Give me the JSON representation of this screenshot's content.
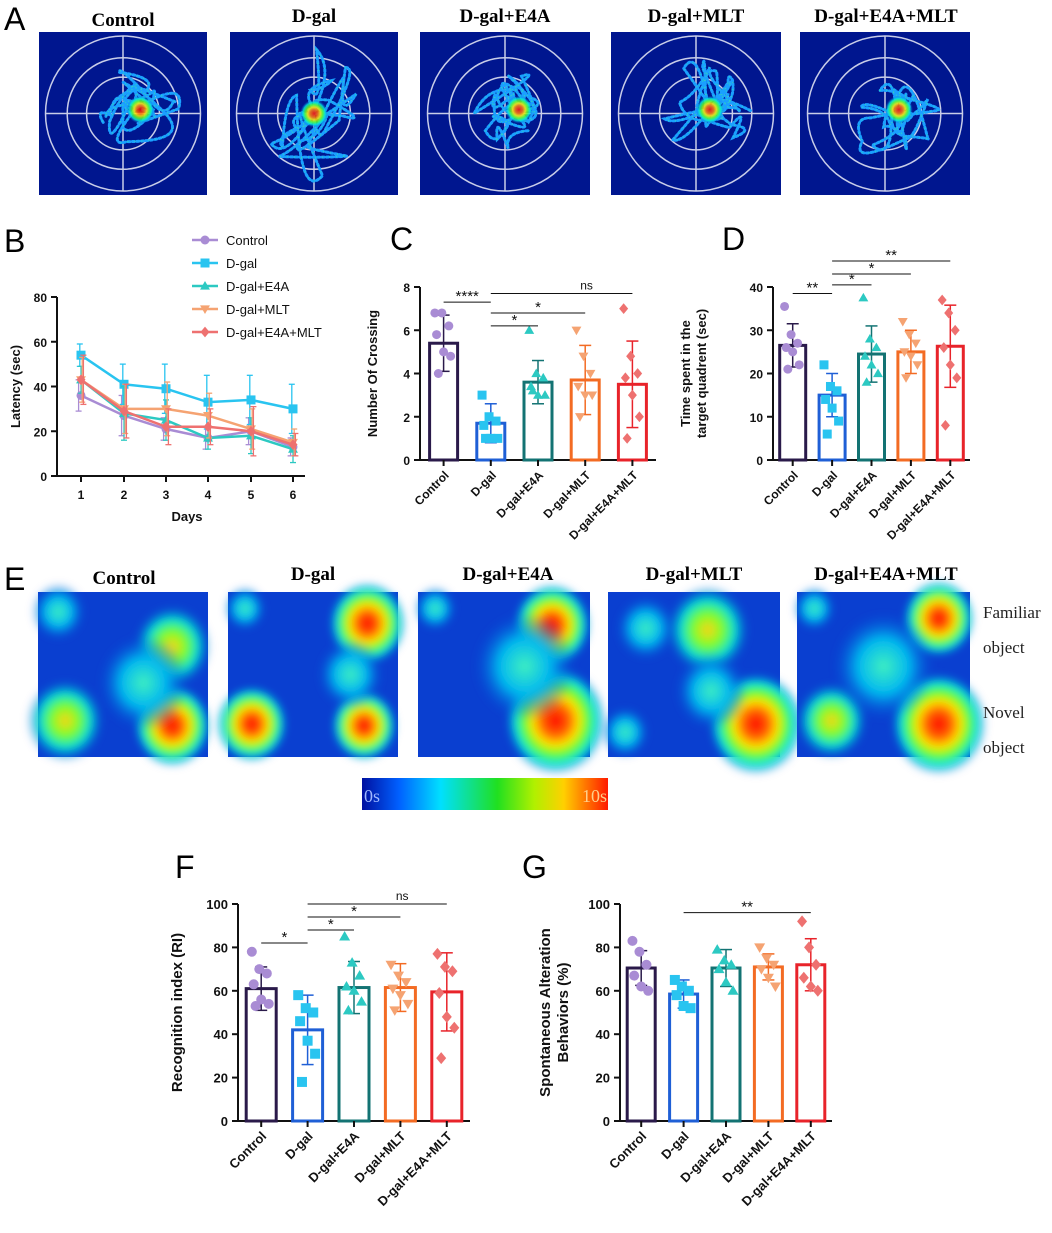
{
  "groups": [
    "Control",
    "D-gal",
    "D-gal+E4A",
    "D-gal+MLT",
    "D-gal+E4A+MLT"
  ],
  "colors": {
    "Control": "#2a1a4a",
    "D-gal": "#1f5fd6",
    "D-gal+E4A": "#137373",
    "D-gal+MLT": "#f36b23",
    "D-gal+E4A+MLT": "#e8232a",
    "line_Control": "#a98cd4",
    "line_D-gal": "#29c4f0",
    "line_D-gal+E4A": "#2cc9c2",
    "line_D-gal+MLT": "#f5a372",
    "line_D-gal+E4A+MLT": "#ee7170",
    "arena_bg": "#00168f"
  },
  "panels": {
    "A": {
      "letter": "A",
      "titles": [
        "Control",
        "D-gal",
        "D-gal+E4A",
        "D-gal+MLT",
        "D-gal+E4A+MLT"
      ]
    },
    "E": {
      "letter": "E",
      "titles": [
        "Control",
        "D-gal",
        "D-gal+E4A",
        "D-gal+MLT",
        "D-gal+E4A+MLT"
      ],
      "familiar": [
        "Familiar",
        "object"
      ],
      "novel": [
        "Novel",
        "object"
      ],
      "scale_min": "0s",
      "scale_max": "10s"
    }
  },
  "chart_data": [
    {
      "panel": "B",
      "type": "line",
      "xlabel": "Days",
      "ylabel": "Latency (sec)",
      "x": [
        1,
        2,
        3,
        4,
        5,
        6
      ],
      "ylim": [
        0,
        80
      ],
      "yticks": [
        0,
        20,
        40,
        60,
        80
      ],
      "series": [
        {
          "name": "Control",
          "values": [
            36,
            27,
            21,
            17,
            20,
            13
          ],
          "err": [
            7,
            9,
            5,
            5,
            6,
            4
          ]
        },
        {
          "name": "D-gal",
          "values": [
            54,
            41,
            39,
            33,
            34,
            30
          ],
          "err": [
            5,
            9,
            11,
            12,
            11,
            11
          ]
        },
        {
          "name": "D-gal+E4A",
          "values": [
            43,
            28,
            25,
            17,
            18,
            12
          ],
          "err": [
            6,
            12,
            9,
            5,
            8,
            6
          ]
        },
        {
          "name": "D-gal+MLT",
          "values": [
            43,
            30,
            30,
            27,
            21,
            15
          ],
          "err": [
            10,
            11,
            12,
            10,
            9,
            6
          ]
        },
        {
          "name": "D-gal+E4A+MLT",
          "values": [
            43,
            29,
            22,
            22,
            20,
            14
          ],
          "err": [
            11,
            12,
            8,
            8,
            11,
            5
          ]
        }
      ]
    },
    {
      "panel": "C",
      "type": "bar",
      "ylabel": "Number Of Crossing",
      "categories": [
        "Control",
        "D-gal",
        "D-gal+E4A",
        "D-gal+MLT",
        "D-gal+E4A+MLT"
      ],
      "values": [
        5.4,
        1.7,
        3.6,
        3.7,
        3.5
      ],
      "err": [
        1.3,
        0.9,
        1.0,
        1.6,
        2.0
      ],
      "points": [
        [
          6.8,
          6.8,
          6.2,
          5.8,
          5.0,
          4.8,
          4.0
        ],
        [
          3.0,
          2.0,
          1.8,
          1.6,
          1.0,
          1.0,
          1.0
        ],
        [
          6.0,
          4.0,
          3.8,
          3.4,
          3.0,
          3.0,
          3.2
        ],
        [
          6.0,
          4.8,
          4.0,
          3.4,
          3.0,
          3.0,
          2.0
        ],
        [
          7.0,
          4.8,
          4.0,
          3.8,
          3.0,
          2.0,
          1.0
        ]
      ],
      "ylim": [
        0,
        8
      ],
      "yticks": [
        0,
        2,
        4,
        6,
        8
      ],
      "sig": [
        {
          "from": 0,
          "to": 1,
          "label": "****",
          "y": 7.3
        },
        {
          "from": 1,
          "to": 2,
          "label": "*",
          "y": 6.2
        },
        {
          "from": 1,
          "to": 3,
          "label": "*",
          "y": 6.8
        },
        {
          "from": 1,
          "to": 4,
          "label": "ns",
          "y": 7.7
        }
      ]
    },
    {
      "panel": "D",
      "type": "bar",
      "ylabel": [
        "Time spent in the",
        "target quadrent (sec)"
      ],
      "categories": [
        "Control",
        "D-gal",
        "D-gal+E4A",
        "D-gal+MLT",
        "D-gal+E4A+MLT"
      ],
      "values": [
        26.5,
        15,
        24.5,
        25,
        26.3
      ],
      "err": [
        5,
        5,
        6.5,
        5,
        9.5
      ],
      "points": [
        [
          35.5,
          29,
          27,
          26,
          25,
          22,
          21
        ],
        [
          22,
          17,
          16,
          14,
          12,
          9,
          6
        ],
        [
          37.5,
          28,
          26,
          24,
          22,
          20,
          18
        ],
        [
          32,
          29,
          27,
          25,
          24,
          22,
          19
        ],
        [
          37,
          34,
          30,
          26,
          22,
          19,
          8
        ]
      ],
      "ylim": [
        0,
        40
      ],
      "yticks": [
        0,
        10,
        20,
        30,
        40
      ],
      "sig": [
        {
          "from": 0,
          "to": 1,
          "label": "**",
          "y": 38.5
        },
        {
          "from": 1,
          "to": 2,
          "label": "*",
          "y": 40.5
        },
        {
          "from": 1,
          "to": 3,
          "label": "*",
          "y": 43
        },
        {
          "from": 1,
          "to": 4,
          "label": "**",
          "y": 46
        }
      ]
    },
    {
      "panel": "F",
      "type": "bar",
      "ylabel": "Recognition index (RI)",
      "categories": [
        "Control",
        "D-gal",
        "D-gal+E4A",
        "D-gal+MLT",
        "D-gal+E4A+MLT"
      ],
      "values": [
        61,
        42,
        61.5,
        61.5,
        59.5
      ],
      "err": [
        10,
        16,
        12,
        11,
        18
      ],
      "points": [
        [
          78,
          70,
          68,
          63,
          56,
          54,
          53
        ],
        [
          58,
          52,
          50,
          46,
          37,
          31,
          18
        ],
        [
          85,
          73,
          67,
          62,
          60,
          55,
          51
        ],
        [
          72,
          67,
          64,
          61,
          58,
          54,
          51
        ],
        [
          77,
          71,
          69,
          59,
          48,
          43,
          29
        ]
      ],
      "ylim": [
        0,
        100
      ],
      "yticks": [
        0,
        20,
        40,
        60,
        80,
        100
      ],
      "sig": [
        {
          "from": 0,
          "to": 1,
          "label": "*",
          "y": 82
        },
        {
          "from": 1,
          "to": 2,
          "label": "*",
          "y": 88
        },
        {
          "from": 1,
          "to": 3,
          "label": "*",
          "y": 94
        },
        {
          "from": 1,
          "to": 4,
          "label": "ns",
          "y": 100
        }
      ]
    },
    {
      "panel": "G",
      "type": "bar",
      "ylabel": [
        "Spontaneous Alteration",
        "Behaviors (%)"
      ],
      "categories": [
        "Control",
        "D-gal",
        "D-gal+E4A",
        "D-gal+MLT",
        "D-gal+E4A+MLT"
      ],
      "values": [
        70.5,
        58.5,
        70.5,
        71,
        72
      ],
      "err": [
        8,
        6.5,
        8.5,
        6,
        12
      ],
      "points": [
        [
          83,
          78,
          72,
          67,
          62,
          60
        ],
        [
          65,
          62,
          60,
          58,
          53,
          52
        ],
        [
          79,
          74,
          72,
          70,
          64,
          60
        ],
        [
          80,
          75,
          72,
          70,
          66,
          62
        ],
        [
          92,
          80,
          72,
          66,
          62,
          60
        ]
      ],
      "ylim": [
        0,
        100
      ],
      "yticks": [
        0,
        20,
        40,
        60,
        80,
        100
      ],
      "sig": [
        {
          "from": 1,
          "to": 4,
          "label": "**",
          "y": 96
        }
      ]
    }
  ]
}
